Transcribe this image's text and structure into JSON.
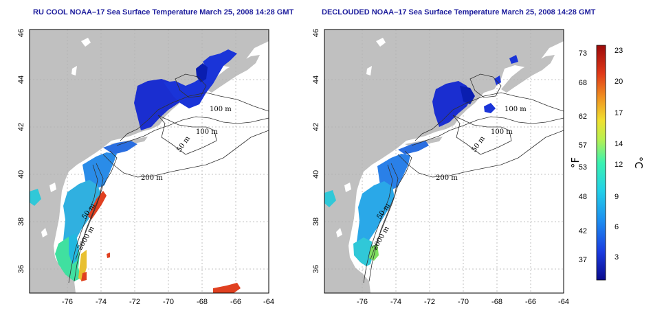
{
  "left_map": {
    "title": "RU COOL NOAA–17 Sea Surface Temperature March 25, 2008 14:28 GMT"
  },
  "right_map": {
    "title": "DECLOUDED NOAA–17 Sea Surface Temperature March 25, 2008 14:28 GMT"
  },
  "axes": {
    "lon_ticks": [
      "-76",
      "-74",
      "-72",
      "-70",
      "-68",
      "-66",
      "-64"
    ],
    "lat_ticks": [
      "36",
      "38",
      "40",
      "42",
      "44",
      "46"
    ]
  },
  "contours": {
    "left": [
      "100 m",
      "100 m",
      "50 m",
      "200 m",
      "50 m",
      "2000 m"
    ],
    "right": [
      "100 m",
      "100 m",
      "50 m",
      "200 m",
      "50 m",
      "2000 m"
    ]
  },
  "colorbar": {
    "fahrenheit_ticks": [
      "73",
      "68",
      "62",
      "57",
      "53",
      "48",
      "42",
      "37"
    ],
    "celsius_ticks": [
      "23",
      "20",
      "17",
      "14",
      "12",
      "9",
      "6",
      "3"
    ],
    "fahrenheit_unit": "°F",
    "celsius_unit": "°C",
    "colors": [
      "#0a0a8c",
      "#1a3be0",
      "#1c8cf0",
      "#22d0e8",
      "#3af2b0",
      "#b8f050",
      "#f0e030",
      "#f09020",
      "#e03818",
      "#9c0a0a"
    ]
  },
  "colors": {
    "land": "#c0c0c0",
    "ocean": "#ffffff",
    "cold": "#1a2ed0",
    "mid": "#2a8ce8",
    "cyan": "#30c8d8",
    "green": "#40e0a0",
    "warm": "#e04020",
    "title": "#1c1c9c"
  }
}
